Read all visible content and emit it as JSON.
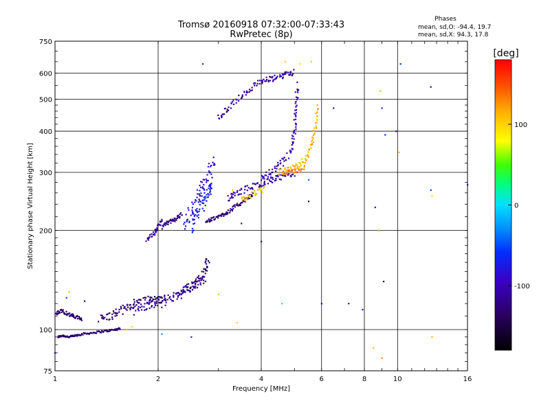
{
  "chart_data": {
    "type": "scatter",
    "title": "Tromsø 20160918 07:32:00-07:33:43",
    "subtitle": "RwPretec (8p)",
    "xlabel": "Frequency [MHz]",
    "ylabel": "Stationary phase Virtual Height [km]",
    "x_scale": "log",
    "y_scale": "log",
    "xlim": [
      1,
      16
    ],
    "ylim": [
      75,
      750
    ],
    "x_ticks": [
      1,
      2,
      4,
      6,
      8,
      10,
      16
    ],
    "x_tick_labels": [
      "1",
      "2",
      "4",
      "6",
      "8",
      "10",
      "16"
    ],
    "y_ticks": [
      75,
      100,
      200,
      300,
      400,
      500,
      600,
      750
    ],
    "y_tick_labels": [
      "75",
      "100",
      "200",
      "300",
      "400",
      "500",
      "600",
      "750"
    ],
    "grid": true,
    "phases_box": {
      "title": "Phases",
      "line1": "mean, sd,O: -94.4, 19.7",
      "line2": "mean, sd,X:  94.3, 17.8"
    },
    "colorbar": {
      "label": "[deg]",
      "range": [
        -180,
        180
      ],
      "ticks": [
        100,
        0,
        -100
      ],
      "tick_labels": [
        "100",
        "0",
        "-100"
      ]
    },
    "series": [
      {
        "traces": [
          {
            "x": [
              1.02,
              1.05,
              1.1,
              1.15,
              1.2,
              1.3,
              1.4,
              1.5,
              1.55
            ],
            "y": [
              95,
              96,
              95,
              96,
              97,
              98,
              99,
              100,
              101
            ],
            "phase": -135,
            "spread": 0.01
          },
          {
            "x": [
              1.0,
              1.05,
              1.1,
              1.15,
              1.2
            ],
            "y": [
              112,
              114,
              111,
              109,
              108
            ],
            "phase": -130,
            "spread": 0.02
          },
          {
            "x": [
              1.35,
              1.45,
              1.55,
              1.65,
              1.75,
              1.9,
              2.0,
              2.1
            ],
            "y": [
              108,
              110,
              114,
              118,
              122,
              124,
              123,
              125
            ],
            "phase": -135,
            "spread": 0.04
          },
          {
            "x": [
              1.7,
              1.85,
              2.0,
              2.15,
              2.3,
              2.45,
              2.6,
              2.75
            ],
            "y": [
              114,
              118,
              120,
              124,
              128,
              132,
              138,
              142
            ],
            "phase": -112,
            "spread": 0.05
          },
          {
            "x": [
              2.3,
              2.45,
              2.6,
              2.75,
              2.8
            ],
            "y": [
              128,
              134,
              142,
              152,
              165
            ],
            "phase": -130,
            "spread": 0.04
          },
          {
            "x": [
              1.85,
              1.95,
              2.0,
              2.05
            ],
            "y": [
              188,
              196,
              205,
              215
            ],
            "phase": -115,
            "spread": 0.02
          },
          {
            "x": [
              2.05,
              2.15,
              2.25,
              2.35
            ],
            "y": [
              205,
              212,
              216,
              225
            ],
            "phase": -125,
            "spread": 0.02
          },
          {
            "x": [
              2.4,
              2.5,
              2.6,
              2.7,
              2.8,
              2.9
            ],
            "y": [
              210,
              230,
              250,
              270,
              290,
              330
            ],
            "phase": -85,
            "spread": 0.07
          },
          {
            "x": [
              2.5,
              2.6,
              2.7,
              2.8,
              2.85
            ],
            "y": [
              205,
              225,
              240,
              260,
              280
            ],
            "phase": -72,
            "spread": 0.06
          },
          {
            "x": [
              2.75,
              2.9,
              3.05,
              3.2,
              3.4,
              3.6,
              3.8
            ],
            "y": [
              212,
              217,
              222,
              228,
              238,
              248,
              258
            ],
            "phase": -130,
            "spread": 0.02
          },
          {
            "x": [
              3.2,
              3.4,
              3.7,
              4.0,
              4.3,
              4.6,
              5.0
            ],
            "y": [
              250,
              260,
              270,
              278,
              285,
              290,
              298
            ],
            "phase": -115,
            "spread": 0.03
          },
          {
            "x": [
              4.0,
              4.3,
              4.6,
              4.9,
              5.0,
              5.05,
              5.1
            ],
            "y": [
              290,
              300,
              320,
              350,
              400,
              470,
              560
            ],
            "phase": -105,
            "spread": 0.04
          },
          {
            "x": [
              3.5,
              3.8,
              4.1
            ],
            "y": [
              248,
              258,
              268
            ],
            "phase": 105,
            "spread": 0.03
          },
          {
            "x": [
              4.5,
              4.8,
              5.1,
              5.4,
              5.6,
              5.75,
              5.85
            ],
            "y": [
              300,
              305,
              315,
              330,
              360,
              410,
              480
            ],
            "phase": 112,
            "spread": 0.03
          },
          {
            "x": [
              4.6,
              5.0,
              5.4
            ],
            "y": [
              298,
              302,
              312
            ],
            "phase": 140,
            "spread": 0.02
          },
          {
            "x": [
              3.0,
              3.2,
              3.5,
              3.8,
              4.1,
              4.4,
              4.7,
              5.0
            ],
            "y": [
              440,
              470,
              510,
              550,
              570,
              580,
              595,
              605
            ],
            "phase": -115,
            "spread": 0.03
          }
        ]
      }
    ],
    "scatter_extra": [
      {
        "x": 2.7,
        "y": 640,
        "phase": -70
      },
      {
        "x": 4.7,
        "y": 650,
        "phase": 100
      },
      {
        "x": 5.6,
        "y": 650,
        "phase": 105
      },
      {
        "x": 5.2,
        "y": 640,
        "phase": 95
      },
      {
        "x": 8.9,
        "y": 530,
        "phase": 110
      },
      {
        "x": 9.0,
        "y": 470,
        "phase": -70
      },
      {
        "x": 9.2,
        "y": 390,
        "phase": -60
      },
      {
        "x": 9.9,
        "y": 400,
        "phase": -105
      },
      {
        "x": 10.1,
        "y": 345,
        "phase": 110
      },
      {
        "x": 10.2,
        "y": 640,
        "phase": -65
      },
      {
        "x": 12.5,
        "y": 545,
        "phase": -110
      },
      {
        "x": 12.5,
        "y": 265,
        "phase": -55
      },
      {
        "x": 12.6,
        "y": 255,
        "phase": 100
      },
      {
        "x": 16.0,
        "y": 275,
        "phase": -110
      },
      {
        "x": 6.5,
        "y": 470,
        "phase": -110
      },
      {
        "x": 8.6,
        "y": 235,
        "phase": -100
      },
      {
        "x": 8.8,
        "y": 200,
        "phase": 120
      },
      {
        "x": 9.1,
        "y": 140,
        "phase": -175
      },
      {
        "x": 9.0,
        "y": 82,
        "phase": 130
      },
      {
        "x": 8.5,
        "y": 88,
        "phase": 110
      },
      {
        "x": 7.2,
        "y": 120,
        "phase": -90
      },
      {
        "x": 7.9,
        "y": 115,
        "phase": -105
      },
      {
        "x": 12.6,
        "y": 95,
        "phase": 115
      },
      {
        "x": 3.4,
        "y": 105,
        "phase": 105
      },
      {
        "x": 4.6,
        "y": 120,
        "phase": 30
      },
      {
        "x": 6.0,
        "y": 120,
        "phase": -100
      },
      {
        "x": 5.5,
        "y": 245,
        "phase": -150
      },
      {
        "x": 5.5,
        "y": 285,
        "phase": -40
      },
      {
        "x": 3.0,
        "y": 128,
        "phase": 110
      },
      {
        "x": 4.0,
        "y": 185,
        "phase": -130
      },
      {
        "x": 2.05,
        "y": 97,
        "phase": -30
      },
      {
        "x": 2.5,
        "y": 95,
        "phase": -60
      },
      {
        "x": 1.1,
        "y": 130,
        "phase": 110
      },
      {
        "x": 1.08,
        "y": 125,
        "phase": -50
      },
      {
        "x": 1.22,
        "y": 122,
        "phase": -120
      },
      {
        "x": 1.0,
        "y": 85,
        "phase": -90
      },
      {
        "x": 1.68,
        "y": 102,
        "phase": 100
      },
      {
        "x": 1.62,
        "y": 100,
        "phase": 110
      },
      {
        "x": 3.5,
        "y": 210,
        "phase": -120
      },
      {
        "x": 3.3,
        "y": 265,
        "phase": 110
      },
      {
        "x": 4.3,
        "y": 300,
        "phase": -150
      }
    ]
  }
}
